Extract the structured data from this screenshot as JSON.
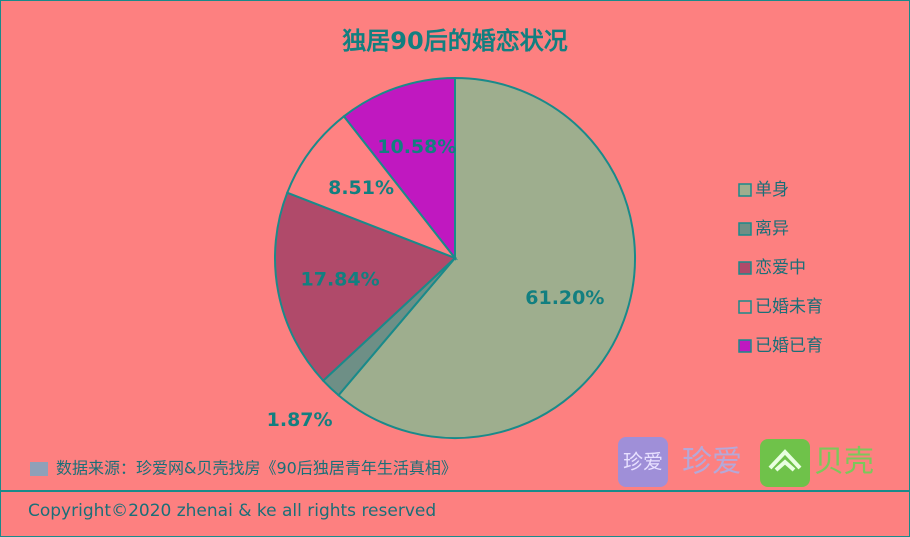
{
  "chart_data": {
    "type": "pie",
    "title": "独居90后的婚恋状况",
    "categories": [
      "单身",
      "离异",
      "恋爱中",
      "已婚未育",
      "已婚已育"
    ],
    "values": [
      61.2,
      1.87,
      17.84,
      8.51,
      10.58
    ],
    "value_labels": [
      "61.20%",
      "1.87%",
      "17.84%",
      "8.51%",
      "10.58%"
    ],
    "colors": [
      "#9eae8e",
      "#6e8f86",
      "#b04a6a",
      "#ff8282",
      "#c018c0"
    ],
    "legend": "right"
  },
  "source": "数据来源：珍爱网&贝壳找房《90后独居青年生活真相》",
  "logos": [
    "珍爱",
    "珍爱",
    "贝壳"
  ],
  "copyright": "Copyright©2020 zhenai & ke all rights reserved"
}
